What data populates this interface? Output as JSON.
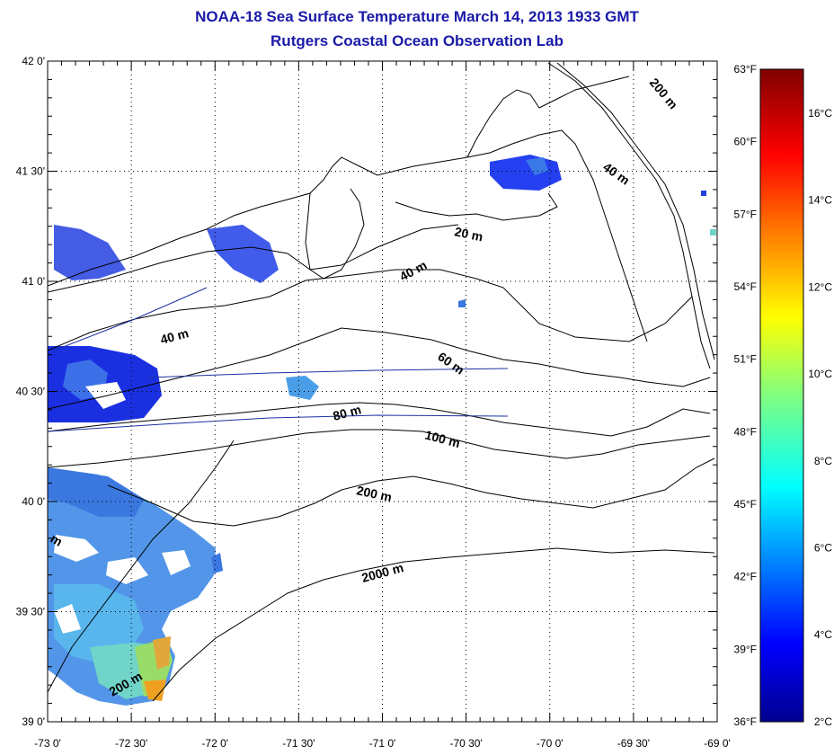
{
  "title": {
    "line1": "NOAA-18 Sea Surface Temperature March 14, 2013 1933 GMT",
    "line2": "Rutgers Coastal Ocean Observation Lab"
  },
  "map": {
    "lon_ticks": [
      "-73 0'",
      "-72 30'",
      "-72 0'",
      "-71 30'",
      "-71 0'",
      "-70 30'",
      "-70 0'",
      "-69 30'",
      "-69 0'"
    ],
    "lat_ticks": [
      "42 0'",
      "41 30'",
      "41 0'",
      "40 30'",
      "40 0'",
      "39 30'",
      "39 0'"
    ],
    "fahrenheit_ticks": [
      "63°F",
      "60°F",
      "57°F",
      "54°F",
      "51°F",
      "48°F",
      "45°F",
      "42°F",
      "39°F",
      "36°F"
    ],
    "celsius_ticks": [
      "16°C",
      "14°C",
      "12°C",
      "10°C",
      "8°C",
      "6°C",
      "4°C",
      "2°C"
    ],
    "contour_labels": {
      "c20": "20 m",
      "c40a": "40 m",
      "c40b": "40 m",
      "c40c": "40 m",
      "c60": "60 m",
      "c80": "80 m",
      "c100": "100 m",
      "c200a": "200 m",
      "c200b": "200 m",
      "c200c": "200 m",
      "c2000": "2000 m",
      "cm": "m"
    },
    "colors": {
      "title": "#1a1aa8",
      "frame": "#000000",
      "grid": "#000000",
      "cold": "#2040e0",
      "warm": "#f0a020"
    }
  }
}
